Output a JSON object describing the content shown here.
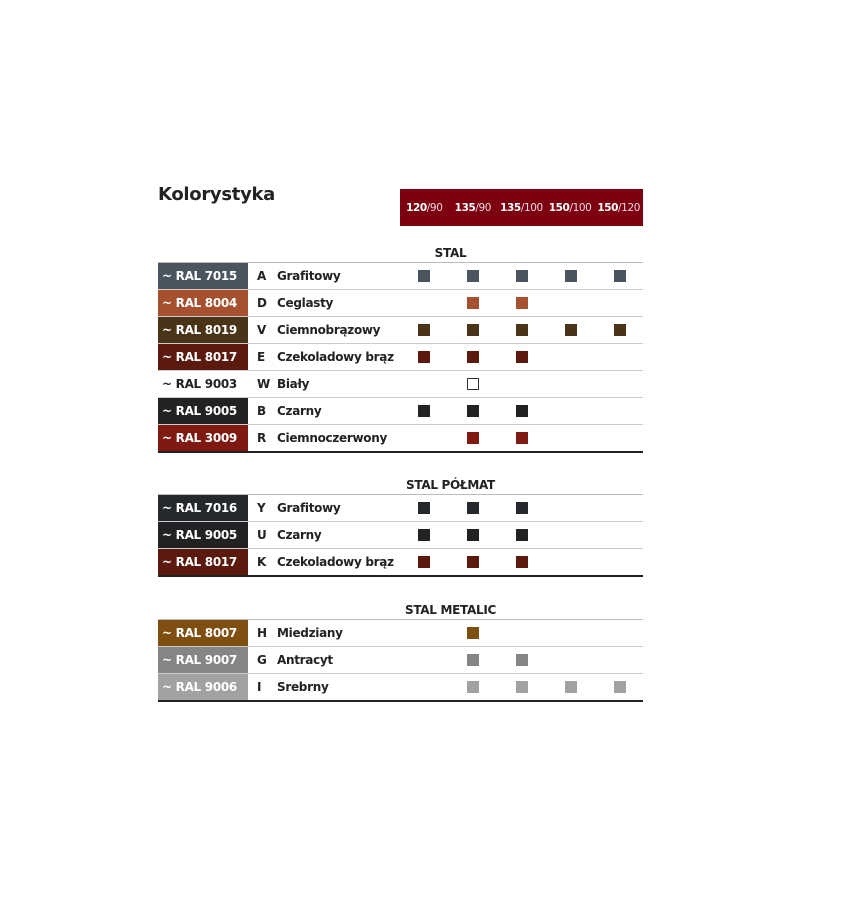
{
  "title": "Kolorystyka",
  "columns": [
    {
      "b": "120",
      "r": "/90"
    },
    {
      "b": "135",
      "r": "/90"
    },
    {
      "b": "135",
      "r": "/100"
    },
    {
      "b": "150",
      "r": "/100"
    },
    {
      "b": "150",
      "r": "/120"
    }
  ],
  "header_color": "#7d0010",
  "sections": [
    {
      "title": "STAL",
      "rows": [
        {
          "ral": "~ RAL 7015",
          "code": "A",
          "name": "Grafitowy",
          "color": "#4a5560",
          "avail": [
            1,
            1,
            1,
            1,
            1
          ]
        },
        {
          "ral": "~ RAL 8004",
          "code": "D",
          "name": "Ceglasty",
          "color": "#a5502f",
          "avail": [
            0,
            1,
            1,
            0,
            0
          ]
        },
        {
          "ral": "~ RAL 8019",
          "code": "V",
          "name": "Ciemnobrązowy",
          "color": "#4a3418",
          "avail": [
            1,
            1,
            1,
            1,
            1
          ]
        },
        {
          "ral": "~ RAL 8017",
          "code": "E",
          "name": "Czekoladowy brąz",
          "color": "#5a1a0e",
          "avail": [
            1,
            1,
            1,
            0,
            0
          ]
        },
        {
          "ral": "~ RAL 9003",
          "code": "W",
          "name": "Biały",
          "color": "#ffffff",
          "avail": [
            0,
            1,
            0,
            0,
            0
          ]
        },
        {
          "ral": "~ RAL 9005",
          "code": "B",
          "name": "Czarny",
          "color": "#222224",
          "avail": [
            1,
            1,
            1,
            0,
            0
          ]
        },
        {
          "ral": "~ RAL 3009",
          "code": "R",
          "name": "Ciemnoczerwony",
          "color": "#7e1a12",
          "avail": [
            0,
            1,
            1,
            0,
            0
          ]
        }
      ]
    },
    {
      "title": "STAL PÓŁMAT",
      "rows": [
        {
          "ral": "~ RAL 7016",
          "code": "Y",
          "name": "Grafitowy",
          "color": "#25292d",
          "avail": [
            1,
            1,
            1,
            0,
            0
          ]
        },
        {
          "ral": "~ RAL 9005",
          "code": "U",
          "name": "Czarny",
          "color": "#222224",
          "avail": [
            1,
            1,
            1,
            0,
            0
          ]
        },
        {
          "ral": "~ RAL 8017",
          "code": "K",
          "name": "Czekoladowy brąz",
          "color": "#5a1a0e",
          "avail": [
            1,
            1,
            1,
            0,
            0
          ]
        }
      ]
    },
    {
      "title": "STAL METALIC",
      "rows": [
        {
          "ral": "~ RAL 8007",
          "code": "H",
          "name": "Miedziany",
          "color": "#7f4f12",
          "avail": [
            0,
            1,
            0,
            0,
            0
          ]
        },
        {
          "ral": "~ RAL 9007",
          "code": "G",
          "name": "Antracyt",
          "color": "#858585",
          "avail": [
            0,
            1,
            1,
            0,
            0
          ]
        },
        {
          "ral": "~ RAL 9006",
          "code": "I",
          "name": "Srebrny",
          "color": "#a2a2a2",
          "avail": [
            0,
            1,
            1,
            1,
            1
          ]
        }
      ]
    }
  ]
}
